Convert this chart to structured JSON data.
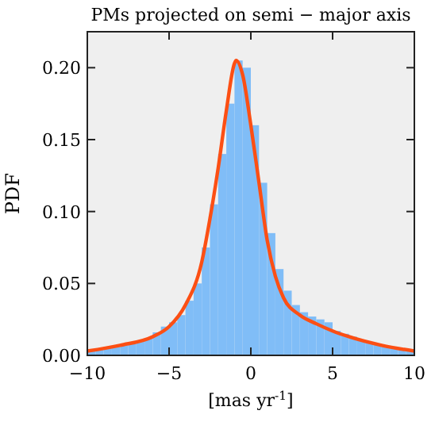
{
  "chart_data": {
    "type": "histogram",
    "title": "PMs projected on semi − major axis",
    "xlabel": "[mas yr$^{-1}$]",
    "ylabel": "PDF",
    "bins": [
      -10,
      -9.5,
      -9,
      -8.5,
      -8,
      -7.5,
      -7,
      -6.5,
      -6,
      -5.5,
      -5,
      -4.5,
      -4,
      -3.5,
      -3,
      -2.5,
      -2,
      -1.5,
      -1,
      -0.5,
      0,
      0.5,
      1,
      1.5,
      2,
      2.5,
      3,
      3.5,
      4,
      4.5,
      5,
      5.5,
      6,
      6.5,
      7,
      7.5,
      8,
      8.5,
      9,
      9.5,
      10
    ],
    "series": [
      {
        "color": "#80bdf7",
        "values": [
          0.003,
          0.004,
          0.005,
          0.006,
          0.007,
          0.008,
          0.01,
          0.012,
          0.016,
          0.02,
          0.023,
          0.028,
          0.038,
          0.05,
          0.075,
          0.105,
          0.14,
          0.175,
          0.205,
          0.2,
          0.16,
          0.12,
          0.085,
          0.06,
          0.045,
          0.035,
          0.03,
          0.027,
          0.025,
          0.023,
          0.017,
          0.015,
          0.013,
          0.011,
          0.009,
          0.008,
          0.006,
          0.005,
          0.004,
          0.003
        ]
      },
      {
        "type": "line",
        "color": "#fc4f14",
        "x": [
          -10,
          -8,
          -6,
          -5,
          -4,
          -3,
          -2.5,
          -2,
          -1.5,
          -1,
          -0.9,
          -0.5,
          0,
          0.5,
          1,
          1.5,
          2,
          3,
          4,
          5,
          6,
          8,
          10
        ],
        "values": [
          0.003,
          0.007,
          0.013,
          0.02,
          0.035,
          0.065,
          0.095,
          0.13,
          0.17,
          0.203,
          0.205,
          0.195,
          0.16,
          0.12,
          0.08,
          0.055,
          0.04,
          0.028,
          0.022,
          0.017,
          0.013,
          0.007,
          0.003
        ]
      }
    ],
    "xlim": [
      -10,
      10
    ],
    "ylim": [
      0,
      0.225
    ],
    "xticks": [
      -10,
      -5,
      0,
      5,
      10
    ],
    "yticks": [
      {
        "value": 0,
        "label": "0.00"
      },
      {
        "value": 0.05,
        "label": "0.05"
      },
      {
        "value": 0.1,
        "label": "0.10"
      },
      {
        "value": 0.15,
        "label": "0.15"
      },
      {
        "value": 0.2,
        "label": "0.20"
      }
    ],
    "grid": false
  }
}
